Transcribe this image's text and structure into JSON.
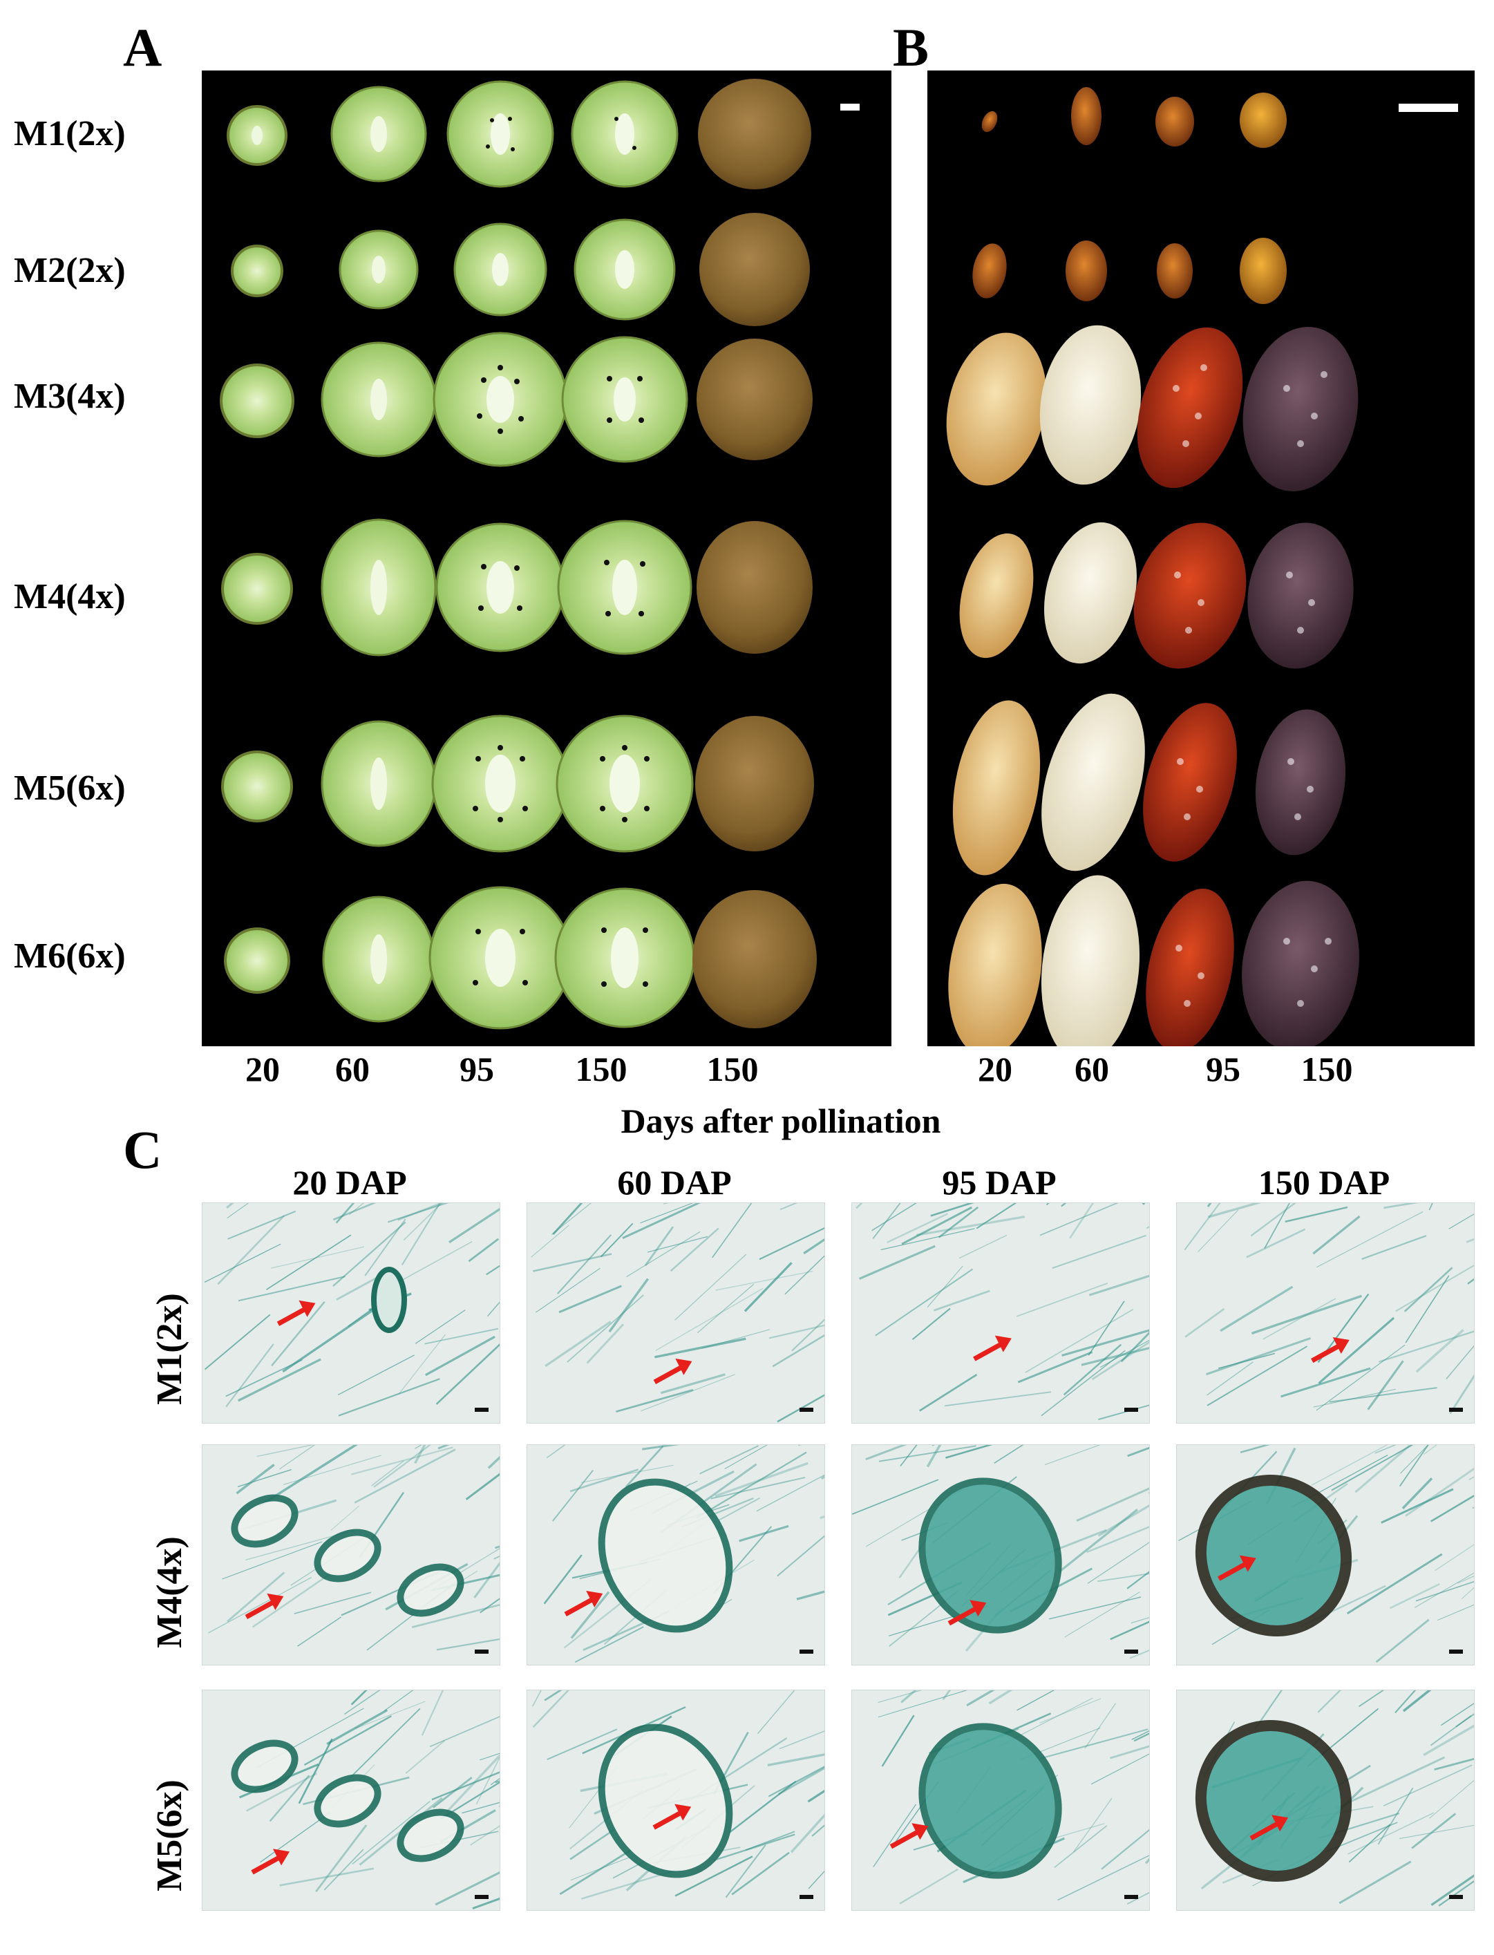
{
  "panels": {
    "a": {
      "letter": "A",
      "rows": [
        "M1(2x)",
        "M2(2x)",
        "M3(4x)",
        "M4(4x)",
        "M5(6x)",
        "M6(6x)"
      ],
      "days": [
        "20",
        "60",
        "95",
        "150",
        "150"
      ]
    },
    "b": {
      "letter": "B",
      "days": [
        "20",
        "60",
        "95",
        "150"
      ]
    },
    "axis_title": "Days after pollination",
    "c": {
      "letter": "C",
      "columns": [
        "20 DAP",
        "60 DAP",
        "95 DAP",
        "150 DAP"
      ],
      "rows": [
        "M1(2x)",
        "M4(4x)",
        "M5(6x)"
      ]
    }
  },
  "colors": {
    "fruit_flesh": "#a6d16f",
    "fruit_skin": "#8a6a2e",
    "seed_early": "#e8c98a",
    "seed_60": "#efe9d6",
    "seed_95": "#b02a10",
    "seed_150": "#4a3340",
    "tissue_bg": "#e6ecea",
    "stain": "#2a8f86",
    "arrow": "#e8201c"
  }
}
